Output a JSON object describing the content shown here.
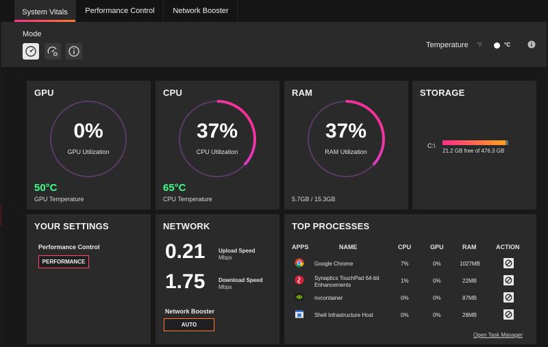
{
  "tabs": [
    {
      "label": "System Vitals",
      "active": true
    },
    {
      "label": "Performance Control",
      "active": false
    },
    {
      "label": "Network Booster",
      "active": false
    }
  ],
  "header": {
    "mode_label": "Mode",
    "mode_buttons": [
      "speedometer-icon",
      "gauge-gear-icon",
      "info-icon"
    ],
    "temperature_label": "Temperature",
    "unit_f": "°F",
    "unit_c": "°C",
    "selected_unit": "°C"
  },
  "gpu": {
    "title": "GPU",
    "utilization": "0%",
    "utilization_fraction": 0.0,
    "utilization_label": "GPU Utilization",
    "temperature": "50°C",
    "temperature_label": "GPU Temperature"
  },
  "cpu": {
    "title": "CPU",
    "utilization": "37%",
    "utilization_fraction": 0.37,
    "utilization_label": "CPU Utilization",
    "temperature": "65°C",
    "temperature_label": "CPU Temperature"
  },
  "ram": {
    "title": "RAM",
    "utilization": "37%",
    "utilization_fraction": 0.37,
    "utilization_label": "RAM Utilization",
    "usage": "5.7GB / 15.3GB"
  },
  "storage": {
    "title": "STORAGE",
    "drive": "C:\\",
    "used_fraction": 0.955,
    "free_text": "21.2 GB free of 476.3 GB"
  },
  "settings": {
    "title": "YOUR SETTINGS",
    "perf_label": "Performance Control",
    "perf_value": "PERFORMANCE"
  },
  "network": {
    "title": "NETWORK",
    "upload_value": "0.21",
    "upload_label": "Upload Speed",
    "upload_unit": "Mbps",
    "download_value": "1.75",
    "download_label": "Download Speed",
    "download_unit": "Mbps",
    "booster_label": "Network Booster",
    "booster_value": "AUTO"
  },
  "processes": {
    "title": "TOP PROCESSES",
    "headers": {
      "apps": "APPS",
      "name": "NAME",
      "cpu": "CPU",
      "gpu": "GPU",
      "ram": "RAM",
      "action": "ACTION"
    },
    "rows": [
      {
        "icon": "chrome-icon",
        "name": "Google Chrome",
        "name2": "",
        "cpu": "7%",
        "gpu": "0%",
        "ram": "1027MB"
      },
      {
        "icon": "synaptics-icon",
        "name": "Synaptics TouchPad 64-bit",
        "name2": "Enhancements",
        "cpu": "1%",
        "gpu": "0%",
        "ram": "22MB"
      },
      {
        "icon": "nvidia-icon",
        "name": "nvcontainer",
        "name2": "",
        "cpu": "0%",
        "gpu": "0%",
        "ram": "87MB"
      },
      {
        "icon": "shell-host-icon",
        "name": "Shell Infrastructure Host",
        "name2": "",
        "cpu": "0%",
        "gpu": "0%",
        "ram": "28MB"
      }
    ],
    "task_manager_link": "Open Task Manager"
  },
  "colors": {
    "accent_pink": "#ff2d87",
    "accent_purple": "#b54dff",
    "accent_orange": "#ff7a2d",
    "temp_green": "#3cff8a"
  }
}
